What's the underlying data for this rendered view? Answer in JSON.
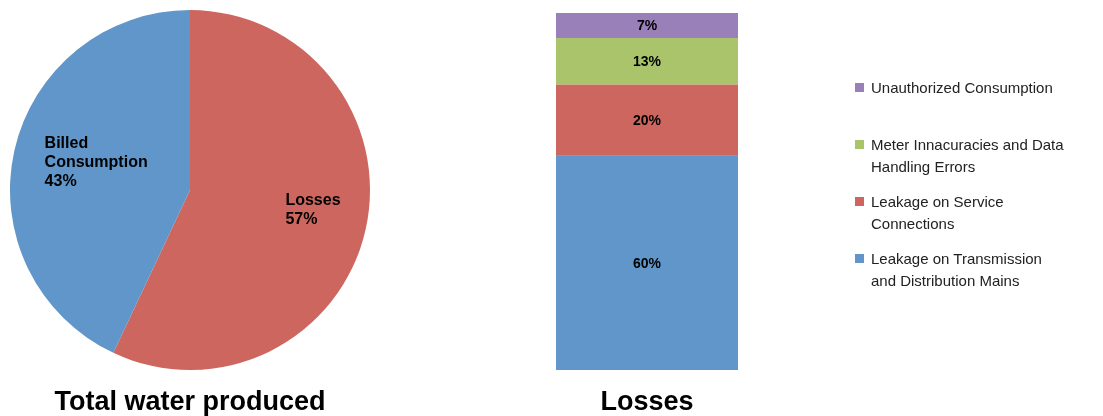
{
  "chart_data": [
    {
      "type": "pie",
      "title": "Total water produced",
      "categories": [
        "Losses",
        "Billed Consumption"
      ],
      "values": [
        57,
        43
      ],
      "colors": [
        "#cd665f",
        "#6096c9"
      ],
      "value_labels": [
        "57%",
        "43%"
      ]
    },
    {
      "type": "bar",
      "title": "Losses",
      "stacked": true,
      "categories": [
        null
      ],
      "ylim": [
        0,
        100
      ],
      "legend": "right",
      "series": [
        {
          "name": "Leakage on Transmission and Distribution Mains",
          "color": "#6096c9",
          "values": [
            60
          ],
          "value_labels": [
            "60%"
          ]
        },
        {
          "name": "Leakage on Service Connections",
          "color": "#cd665f",
          "values": [
            20
          ],
          "value_labels": [
            "20%"
          ]
        },
        {
          "name": "Meter Innacuracies and Data Handling Errors",
          "color": "#a9c46a",
          "values": [
            13
          ],
          "value_labels": [
            "13%"
          ]
        },
        {
          "name": "Unauthorized Consumption",
          "color": "#9a80b8",
          "values": [
            7
          ],
          "value_labels": [
            "7%"
          ]
        }
      ]
    }
  ]
}
